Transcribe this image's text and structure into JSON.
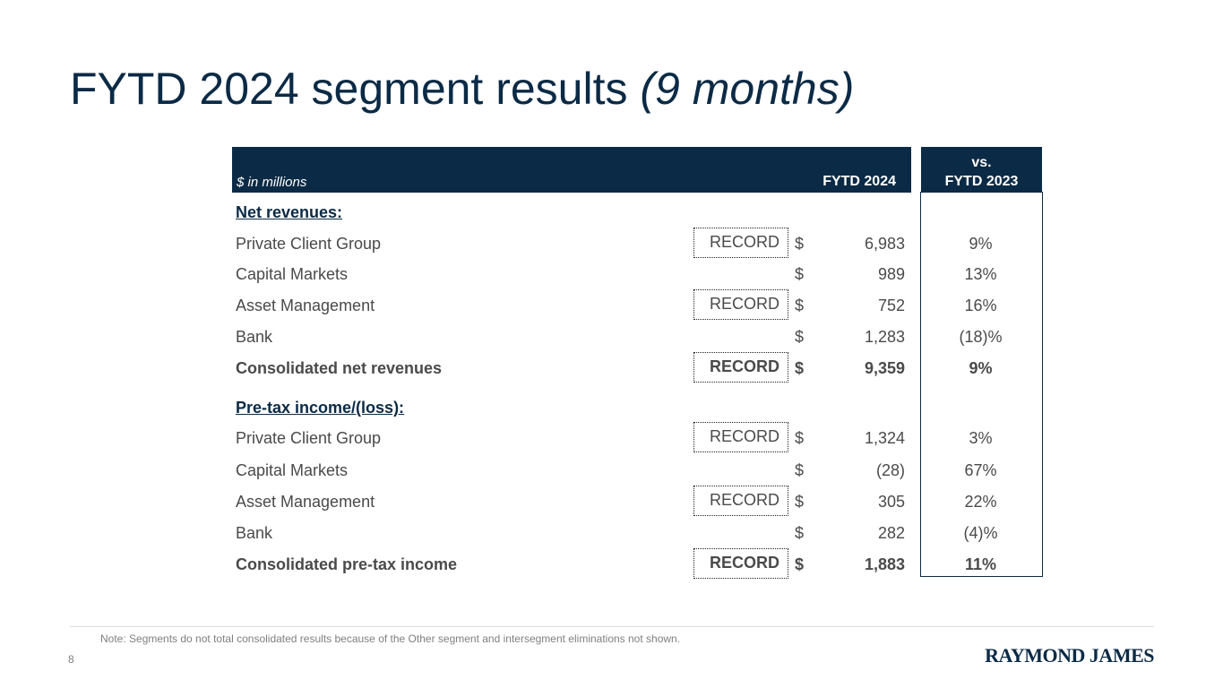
{
  "title": {
    "main": "FYTD 2024 segment results ",
    "italic": "(9 months)"
  },
  "table": {
    "unit_label": "$ in millions",
    "col_head": "FYTD 2024",
    "vs_head": [
      "vs.",
      "FYTD 2023"
    ],
    "record_label": "RECORD",
    "dollar": "$",
    "sections": {
      "net_revenues": "Net revenues:",
      "pretax": "Pre-tax income/(loss):"
    },
    "rows": [
      {
        "label": "Private Client Group",
        "value": "6,983",
        "change": "9%",
        "record": true,
        "bold": false
      },
      {
        "label": "Capital Markets",
        "value": "989",
        "change": "13%",
        "record": false,
        "bold": false
      },
      {
        "label": "Asset Management",
        "value": "752",
        "change": "16%",
        "record": true,
        "bold": false
      },
      {
        "label": "Bank",
        "value": "1,283",
        "change": "(18)%",
        "record": false,
        "bold": false
      },
      {
        "label": "Consolidated net revenues",
        "value": "9,359",
        "change": "9%",
        "record": true,
        "bold": true
      },
      {
        "label": "Private Client Group",
        "value": "1,324",
        "change": "3%",
        "record": true,
        "bold": false
      },
      {
        "label": "Capital Markets",
        "value": "(28)",
        "change": "67%",
        "record": false,
        "bold": false
      },
      {
        "label": "Asset Management",
        "value": "305",
        "change": "22%",
        "record": true,
        "bold": false
      },
      {
        "label": "Bank",
        "value": "282",
        "change": "(4)%",
        "record": false,
        "bold": false
      },
      {
        "label": "Consolidated pre-tax income",
        "value": "1,883",
        "change": "11%",
        "record": true,
        "bold": true
      }
    ]
  },
  "footer": {
    "note": "Note: Segments do not total consolidated results because of the Other segment and intersegment eliminations not shown.",
    "page": "8",
    "logo": "RAYMOND JAMES"
  }
}
